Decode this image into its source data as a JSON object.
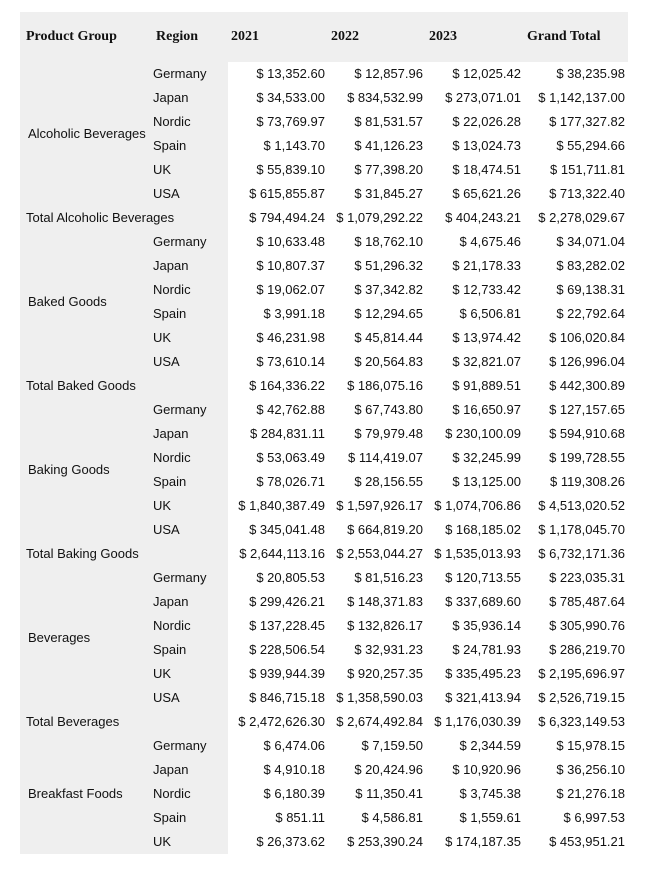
{
  "table": {
    "header": [
      "Product Group",
      "Region",
      "2021",
      "2022",
      "2023",
      "Grand Total"
    ],
    "groups": [
      {
        "name": "Alcoholic Beverages",
        "rows": [
          [
            "Germany",
            "$ 13,352.60",
            "$ 12,857.96",
            "$ 12,025.42",
            "$ 38,235.98"
          ],
          [
            "Japan",
            "$ 34,533.00",
            "$ 834,532.99",
            "$ 273,071.01",
            "$ 1,142,137.00"
          ],
          [
            "Nordic",
            "$ 73,769.97",
            "$ 81,531.57",
            "$ 22,026.28",
            "$ 177,327.82"
          ],
          [
            "Spain",
            "$ 1,143.70",
            "$ 41,126.23",
            "$ 13,024.73",
            "$ 55,294.66"
          ],
          [
            "UK",
            "$ 55,839.10",
            "$ 77,398.20",
            "$ 18,474.51",
            "$ 151,711.81"
          ],
          [
            "USA",
            "$ 615,855.87",
            "$ 31,845.27",
            "$ 65,621.26",
            "$ 713,322.40"
          ]
        ],
        "total": {
          "label": "Total Alcoholic Beverages",
          "values": [
            "$ 794,494.24",
            "$ 1,079,292.22",
            "$ 404,243.21",
            "$ 2,278,029.67"
          ]
        }
      },
      {
        "name": "Baked Goods",
        "rows": [
          [
            "Germany",
            "$ 10,633.48",
            "$ 18,762.10",
            "$ 4,675.46",
            "$ 34,071.04"
          ],
          [
            "Japan",
            "$ 10,807.37",
            "$ 51,296.32",
            "$ 21,178.33",
            "$ 83,282.02"
          ],
          [
            "Nordic",
            "$ 19,062.07",
            "$ 37,342.82",
            "$ 12,733.42",
            "$ 69,138.31"
          ],
          [
            "Spain",
            "$ 3,991.18",
            "$ 12,294.65",
            "$ 6,506.81",
            "$ 22,792.64"
          ],
          [
            "UK",
            "$ 46,231.98",
            "$ 45,814.44",
            "$ 13,974.42",
            "$ 106,020.84"
          ],
          [
            "USA",
            "$ 73,610.14",
            "$ 20,564.83",
            "$ 32,821.07",
            "$ 126,996.04"
          ]
        ],
        "total": {
          "label": "Total Baked Goods",
          "values": [
            "$ 164,336.22",
            "$ 186,075.16",
            "$ 91,889.51",
            "$ 442,300.89"
          ]
        }
      },
      {
        "name": "Baking Goods",
        "rows": [
          [
            "Germany",
            "$ 42,762.88",
            "$ 67,743.80",
            "$ 16,650.97",
            "$ 127,157.65"
          ],
          [
            "Japan",
            "$ 284,831.11",
            "$ 79,979.48",
            "$ 230,100.09",
            "$ 594,910.68"
          ],
          [
            "Nordic",
            "$ 53,063.49",
            "$ 114,419.07",
            "$ 32,245.99",
            "$ 199,728.55"
          ],
          [
            "Spain",
            "$ 78,026.71",
            "$ 28,156.55",
            "$ 13,125.00",
            "$ 119,308.26"
          ],
          [
            "UK",
            "$ 1,840,387.49",
            "$ 1,597,926.17",
            "$ 1,074,706.86",
            "$ 4,513,020.52"
          ],
          [
            "USA",
            "$ 345,041.48",
            "$ 664,819.20",
            "$ 168,185.02",
            "$ 1,178,045.70"
          ]
        ],
        "total": {
          "label": "Total Baking Goods",
          "values": [
            "$ 2,644,113.16",
            "$ 2,553,044.27",
            "$ 1,535,013.93",
            "$ 6,732,171.36"
          ]
        }
      },
      {
        "name": "Beverages",
        "rows": [
          [
            "Germany",
            "$ 20,805.53",
            "$ 81,516.23",
            "$ 120,713.55",
            "$ 223,035.31"
          ],
          [
            "Japan",
            "$ 299,426.21",
            "$ 148,371.83",
            "$ 337,689.60",
            "$ 785,487.64"
          ],
          [
            "Nordic",
            "$ 137,228.45",
            "$ 132,826.17",
            "$ 35,936.14",
            "$ 305,990.76"
          ],
          [
            "Spain",
            "$ 228,506.54",
            "$ 32,931.23",
            "$ 24,781.93",
            "$ 286,219.70"
          ],
          [
            "UK",
            "$ 939,944.39",
            "$ 920,257.35",
            "$ 335,495.23",
            "$ 2,195,696.97"
          ],
          [
            "USA",
            "$ 846,715.18",
            "$ 1,358,590.03",
            "$ 321,413.94",
            "$ 2,526,719.15"
          ]
        ],
        "total": {
          "label": "Total Beverages",
          "values": [
            "$ 2,472,626.30",
            "$ 2,674,492.84",
            "$ 1,176,030.39",
            "$ 6,323,149.53"
          ]
        }
      },
      {
        "name": "Breakfast Foods",
        "rows": [
          [
            "Germany",
            "$ 6,474.06",
            "$ 7,159.50",
            "$ 2,344.59",
            "$ 15,978.15"
          ],
          [
            "Japan",
            "$ 4,910.18",
            "$ 20,424.96",
            "$ 10,920.96",
            "$ 36,256.10"
          ],
          [
            "Nordic",
            "$ 6,180.39",
            "$ 11,350.41",
            "$ 3,745.38",
            "$ 21,276.18"
          ],
          [
            "Spain",
            "$ 851.11",
            "$ 4,586.81",
            "$ 1,559.61",
            "$ 6,997.53"
          ],
          [
            "UK",
            "$ 26,373.62",
            "$ 253,390.24",
            "$ 174,187.35",
            "$ 453,951.21"
          ]
        ]
      }
    ]
  }
}
